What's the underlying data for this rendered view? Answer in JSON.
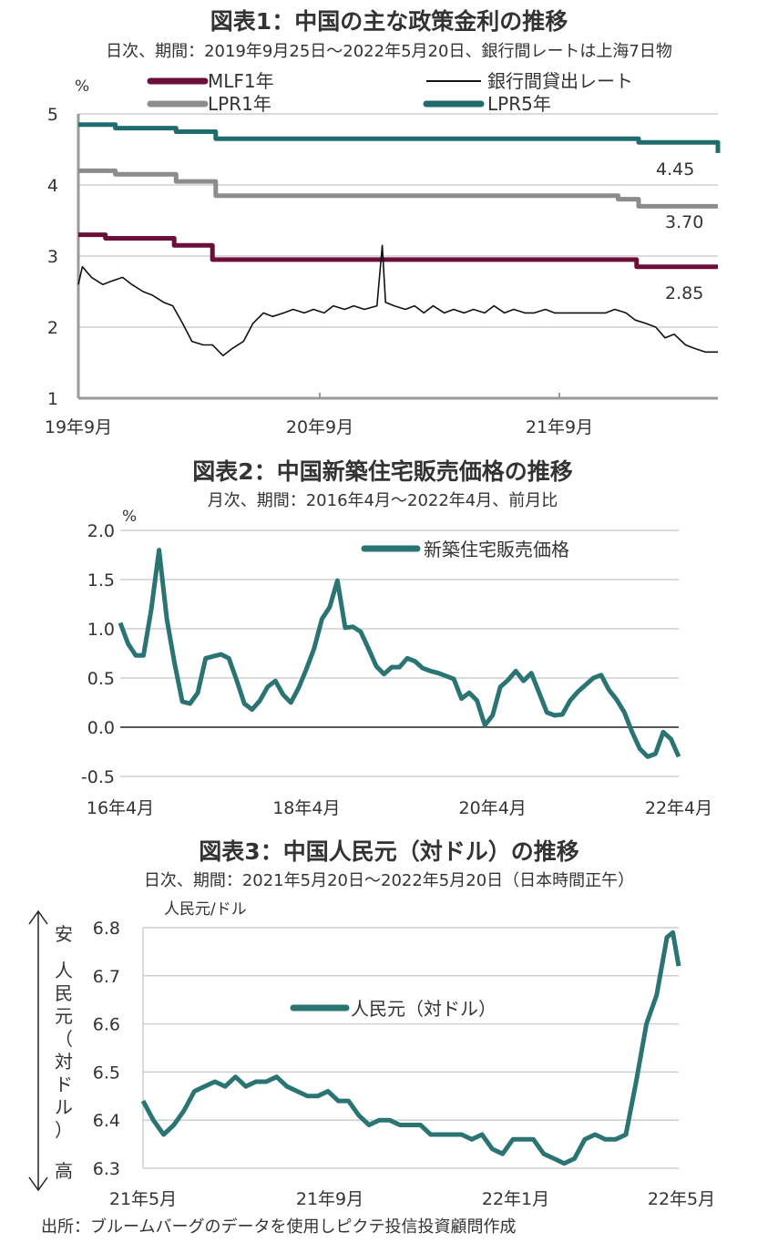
{
  "colors": {
    "mlf": "#6b0f3a",
    "interbank": "#111111",
    "lpr1": "#8c8c8c",
    "lpr5": "#1f6b6e",
    "teal": "#2a7574",
    "grid": "#cfcfcf",
    "axis": "#9a9a9a"
  },
  "source": "出所：ブルームバーグのデータを使用しピクテ投信投資顧問作成",
  "chart_data": [
    {
      "type": "line",
      "title": "図表1：中国の主な政策金利の推移",
      "subtitle": "日次、期間：2019年9月25日～2022年5月20日、銀行間レートは上海7日物",
      "ylabel": "%",
      "ylim": [
        1,
        5
      ],
      "yticks": [
        "5",
        "4",
        "3",
        "2",
        "1"
      ],
      "xticks": [
        "19年9月",
        "20年9月",
        "21年9月"
      ],
      "grid": true,
      "legend_placement": "top",
      "annotations": [
        "4.45",
        "3.70",
        "2.85"
      ],
      "series": [
        {
          "name": "MLF1年",
          "step": true,
          "points": [
            [
              "2019-09-25",
              3.3
            ],
            [
              "2019-11-05",
              3.25
            ],
            [
              "2020-02-17",
              3.15
            ],
            [
              "2020-04-15",
              2.95
            ],
            [
              "2022-01-17",
              2.85
            ],
            [
              "2022-05-20",
              2.85
            ]
          ]
        },
        {
          "name": "銀行間貸出レート",
          "step": false,
          "points": [
            [
              "2019-09-25",
              2.6
            ],
            [
              "2019-10-01",
              2.85
            ],
            [
              "2019-10-15",
              2.7
            ],
            [
              "2019-11-01",
              2.6
            ],
            [
              "2019-11-15",
              2.65
            ],
            [
              "2019-12-01",
              2.7
            ],
            [
              "2019-12-15",
              2.6
            ],
            [
              "2020-01-01",
              2.5
            ],
            [
              "2020-01-15",
              2.45
            ],
            [
              "2020-02-01",
              2.35
            ],
            [
              "2020-02-15",
              2.3
            ],
            [
              "2020-03-01",
              2.05
            ],
            [
              "2020-03-15",
              1.8
            ],
            [
              "2020-04-01",
              1.75
            ],
            [
              "2020-04-15",
              1.75
            ],
            [
              "2020-05-01",
              1.6
            ],
            [
              "2020-05-15",
              1.7
            ],
            [
              "2020-06-01",
              1.8
            ],
            [
              "2020-06-15",
              2.05
            ],
            [
              "2020-07-01",
              2.2
            ],
            [
              "2020-07-15",
              2.15
            ],
            [
              "2020-08-01",
              2.2
            ],
            [
              "2020-08-15",
              2.25
            ],
            [
              "2020-09-01",
              2.2
            ],
            [
              "2020-09-15",
              2.25
            ],
            [
              "2020-10-01",
              2.2
            ],
            [
              "2020-10-15",
              2.3
            ],
            [
              "2020-11-01",
              2.25
            ],
            [
              "2020-11-15",
              2.3
            ],
            [
              "2020-12-01",
              2.25
            ],
            [
              "2020-12-20",
              2.3
            ],
            [
              "2020-12-28",
              3.15
            ],
            [
              "2021-01-02",
              2.35
            ],
            [
              "2021-01-15",
              2.3
            ],
            [
              "2021-02-01",
              2.25
            ],
            [
              "2021-02-15",
              2.3
            ],
            [
              "2021-03-01",
              2.2
            ],
            [
              "2021-03-15",
              2.3
            ],
            [
              "2021-04-01",
              2.2
            ],
            [
              "2021-04-15",
              2.25
            ],
            [
              "2021-05-01",
              2.2
            ],
            [
              "2021-05-15",
              2.25
            ],
            [
              "2021-06-01",
              2.2
            ],
            [
              "2021-06-15",
              2.3
            ],
            [
              "2021-07-01",
              2.2
            ],
            [
              "2021-07-15",
              2.25
            ],
            [
              "2021-08-01",
              2.2
            ],
            [
              "2021-08-15",
              2.2
            ],
            [
              "2021-09-01",
              2.25
            ],
            [
              "2021-09-15",
              2.2
            ],
            [
              "2021-10-01",
              2.2
            ],
            [
              "2021-10-15",
              2.2
            ],
            [
              "2021-11-01",
              2.2
            ],
            [
              "2021-11-15",
              2.2
            ],
            [
              "2021-12-01",
              2.2
            ],
            [
              "2021-12-15",
              2.25
            ],
            [
              "2022-01-01",
              2.2
            ],
            [
              "2022-01-15",
              2.1
            ],
            [
              "2022-02-01",
              2.05
            ],
            [
              "2022-02-15",
              2.0
            ],
            [
              "2022-03-01",
              1.85
            ],
            [
              "2022-03-15",
              1.9
            ],
            [
              "2022-04-01",
              1.75
            ],
            [
              "2022-04-15",
              1.7
            ],
            [
              "2022-05-01",
              1.65
            ],
            [
              "2022-05-20",
              1.65
            ]
          ]
        },
        {
          "name": "LPR1年",
          "step": true,
          "points": [
            [
              "2019-09-25",
              4.2
            ],
            [
              "2019-10-21",
              4.2
            ],
            [
              "2019-11-20",
              4.15
            ],
            [
              "2020-02-20",
              4.05
            ],
            [
              "2020-04-20",
              3.85
            ],
            [
              "2021-12-20",
              3.8
            ],
            [
              "2022-01-20",
              3.7
            ],
            [
              "2022-05-20",
              3.7
            ]
          ]
        },
        {
          "name": "LPR5年",
          "step": true,
          "points": [
            [
              "2019-09-25",
              4.85
            ],
            [
              "2019-11-20",
              4.8
            ],
            [
              "2020-02-20",
              4.75
            ],
            [
              "2020-04-20",
              4.65
            ],
            [
              "2022-01-20",
              4.6
            ],
            [
              "2022-05-20",
              4.45
            ]
          ]
        }
      ]
    },
    {
      "type": "line",
      "title": "図表2：中国新築住宅販売価格の推移",
      "subtitle": "月次、期間：2016年4月～2022年4月、前月比",
      "ylabel": "%",
      "ylim": [
        -0.5,
        2.0
      ],
      "yticks": [
        "2.0",
        "1.5",
        "1.0",
        "0.5",
        "0.0",
        "-0.5"
      ],
      "xticks": [
        "16年4月",
        "18年4月",
        "20年4月",
        "22年4月"
      ],
      "grid": true,
      "legend_placement": "top-right",
      "series": [
        {
          "name": "新築住宅販売価格",
          "start": "2016-04",
          "values": [
            1.06,
            0.85,
            0.73,
            0.73,
            1.2,
            1.8,
            1.1,
            0.65,
            0.26,
            0.24,
            0.35,
            0.7,
            0.72,
            0.74,
            0.7,
            0.48,
            0.24,
            0.18,
            0.27,
            0.41,
            0.47,
            0.33,
            0.25,
            0.4,
            0.59,
            0.8,
            1.1,
            1.22,
            1.49,
            1.01,
            1.02,
            0.97,
            0.8,
            0.62,
            0.54,
            0.61,
            0.61,
            0.7,
            0.67,
            0.6,
            0.57,
            0.55,
            0.52,
            0.49,
            0.29,
            0.35,
            0.27,
            0.02,
            0.12,
            0.41,
            0.48,
            0.57,
            0.47,
            0.55,
            0.35,
            0.15,
            0.12,
            0.13,
            0.27,
            0.36,
            0.43,
            0.5,
            0.53,
            0.38,
            0.28,
            0.15,
            -0.05,
            -0.22,
            -0.3,
            -0.27,
            -0.05,
            -0.12,
            -0.3
          ]
        }
      ]
    },
    {
      "type": "line",
      "title": "図表3：中国人民元（対ドル）の推移",
      "subtitle": "日次、期間：2021年5月20日～2022年5月20日（日本時間正午）",
      "ylabel": "人民元/ドル",
      "ylim": [
        6.3,
        6.8
      ],
      "yticks": [
        "6.8",
        "6.7",
        "6.6",
        "6.5",
        "6.4",
        "6.3"
      ],
      "xticks": [
        "21年5月",
        "21年9月",
        "22年1月",
        "22年5月"
      ],
      "side_label": {
        "top": "安",
        "middle": "人民元（対ドル）",
        "bottom": "高"
      },
      "grid": true,
      "legend_placement": "center",
      "series": [
        {
          "name": "人民元（対ドル）",
          "points": [
            [
              "2021-05-20",
              6.44
            ],
            [
              "2021-05-27",
              6.4
            ],
            [
              "2021-06-03",
              6.37
            ],
            [
              "2021-06-10",
              6.39
            ],
            [
              "2021-06-17",
              6.42
            ],
            [
              "2021-06-24",
              6.46
            ],
            [
              "2021-07-01",
              6.47
            ],
            [
              "2021-07-08",
              6.48
            ],
            [
              "2021-07-15",
              6.47
            ],
            [
              "2021-07-22",
              6.49
            ],
            [
              "2021-07-29",
              6.47
            ],
            [
              "2021-08-05",
              6.48
            ],
            [
              "2021-08-12",
              6.48
            ],
            [
              "2021-08-19",
              6.49
            ],
            [
              "2021-08-26",
              6.47
            ],
            [
              "2021-09-02",
              6.46
            ],
            [
              "2021-09-09",
              6.45
            ],
            [
              "2021-09-16",
              6.45
            ],
            [
              "2021-09-23",
              6.46
            ],
            [
              "2021-09-30",
              6.44
            ],
            [
              "2021-10-07",
              6.44
            ],
            [
              "2021-10-14",
              6.41
            ],
            [
              "2021-10-21",
              6.39
            ],
            [
              "2021-10-28",
              6.4
            ],
            [
              "2021-11-04",
              6.4
            ],
            [
              "2021-11-11",
              6.39
            ],
            [
              "2021-11-18",
              6.39
            ],
            [
              "2021-11-25",
              6.39
            ],
            [
              "2021-12-02",
              6.37
            ],
            [
              "2021-12-09",
              6.37
            ],
            [
              "2021-12-16",
              6.37
            ],
            [
              "2021-12-23",
              6.37
            ],
            [
              "2021-12-30",
              6.36
            ],
            [
              "2022-01-06",
              6.37
            ],
            [
              "2022-01-13",
              6.34
            ],
            [
              "2022-01-20",
              6.33
            ],
            [
              "2022-01-27",
              6.36
            ],
            [
              "2022-02-03",
              6.36
            ],
            [
              "2022-02-10",
              6.36
            ],
            [
              "2022-02-17",
              6.33
            ],
            [
              "2022-02-24",
              6.32
            ],
            [
              "2022-03-03",
              6.31
            ],
            [
              "2022-03-10",
              6.32
            ],
            [
              "2022-03-17",
              6.36
            ],
            [
              "2022-03-24",
              6.37
            ],
            [
              "2022-03-31",
              6.36
            ],
            [
              "2022-04-07",
              6.36
            ],
            [
              "2022-04-14",
              6.37
            ],
            [
              "2022-04-21",
              6.48
            ],
            [
              "2022-04-28",
              6.6
            ],
            [
              "2022-05-05",
              6.66
            ],
            [
              "2022-05-12",
              6.78
            ],
            [
              "2022-05-16",
              6.79
            ],
            [
              "2022-05-20",
              6.72
            ]
          ]
        }
      ]
    }
  ]
}
